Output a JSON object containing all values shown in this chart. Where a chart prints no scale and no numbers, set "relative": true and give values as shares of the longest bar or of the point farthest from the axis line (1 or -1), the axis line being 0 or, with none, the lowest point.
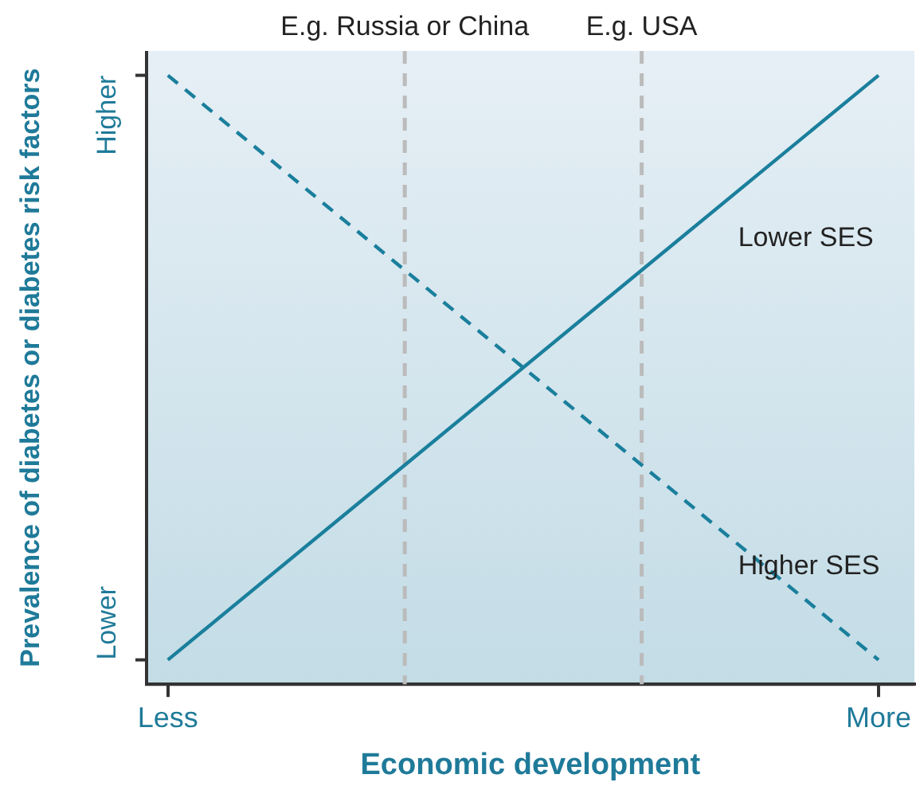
{
  "chart_data": {
    "type": "line",
    "relative": true,
    "xlabel": "Economic development",
    "ylabel": "Prevalence of diabetes or diabetes risk factors",
    "categories": [
      "Less",
      "E.g. Russia or China",
      "E.g. USA",
      "More"
    ],
    "series": [
      {
        "name": "Lower SES",
        "color": "#1a7f9c",
        "values": [
          0.04,
          0.36,
          0.68,
          1
        ],
        "line_style": "solid"
      },
      {
        "name": "Higher SES",
        "color": "#1a7f9c",
        "values": [
          1,
          0.68,
          0.36,
          0.04
        ],
        "line_style": "dashed"
      }
    ],
    "ref_lines": [
      {
        "axis": "x",
        "value": "E.g. Russia or China",
        "color": "#bbbbbb",
        "line_style": "dashed"
      },
      {
        "axis": "x",
        "value": "E.g. USA",
        "color": "#bbbbbb",
        "line_style": "dashed"
      }
    ],
    "annotations": [
      "Lower",
      "Higher"
    ],
    "grid": false,
    "legend": false,
    "marker": "none"
  }
}
